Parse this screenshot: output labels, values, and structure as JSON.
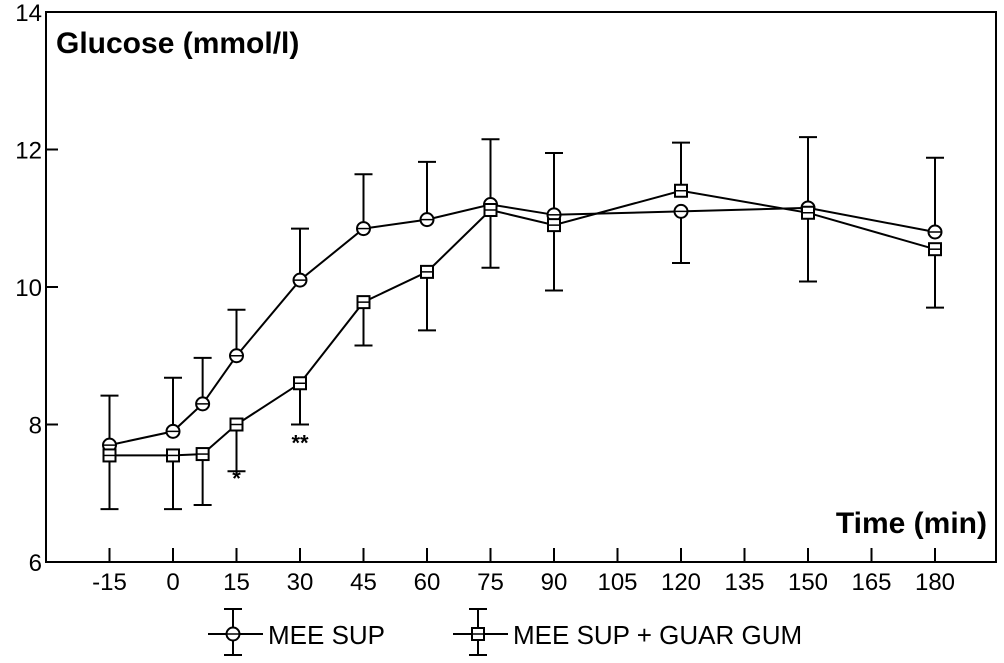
{
  "chart_data": {
    "type": "line",
    "ylabel": "Glucose (mmol/l)",
    "xlabel": "Time (min)",
    "ylim": [
      6,
      14
    ],
    "yticks": [
      6,
      8,
      10,
      12,
      14
    ],
    "xticks": [
      -15,
      0,
      15,
      30,
      45,
      60,
      75,
      90,
      105,
      120,
      135,
      150,
      165,
      180
    ],
    "grid": false,
    "legend_position": "bottom",
    "series": [
      {
        "name": "MEE SUP",
        "marker": "circle",
        "x": [
          -15,
          0,
          7,
          15,
          30,
          45,
          60,
          75,
          90,
          120,
          150,
          180
        ],
        "y": [
          7.7,
          7.9,
          8.3,
          9.0,
          10.1,
          10.85,
          10.98,
          11.2,
          11.05,
          11.1,
          11.15,
          10.8
        ],
        "err_up": [
          8.42,
          8.68,
          8.97,
          9.67,
          10.85,
          11.64,
          11.82,
          12.15,
          11.95,
          null,
          12.18,
          11.88
        ],
        "err_down": [
          null,
          null,
          null,
          null,
          null,
          null,
          null,
          null,
          null,
          10.35,
          null,
          null
        ]
      },
      {
        "name": "MEE SUP + GUAR GUM",
        "marker": "square",
        "x": [
          -15,
          0,
          7,
          15,
          30,
          45,
          60,
          75,
          90,
          120,
          150,
          180
        ],
        "y": [
          7.55,
          7.55,
          7.57,
          8.0,
          8.6,
          9.78,
          10.22,
          11.12,
          10.9,
          11.4,
          11.08,
          10.55
        ],
        "err_up": [
          null,
          null,
          null,
          null,
          null,
          null,
          null,
          null,
          null,
          12.1,
          null,
          null
        ],
        "err_down": [
          6.77,
          6.77,
          6.83,
          7.32,
          8.0,
          9.15,
          9.37,
          10.28,
          9.95,
          null,
          10.08,
          9.7
        ]
      }
    ],
    "annotations": [
      {
        "x": 15,
        "y": 7.22,
        "text": "*"
      },
      {
        "x": 30,
        "y": 7.74,
        "text": "**"
      }
    ]
  }
}
